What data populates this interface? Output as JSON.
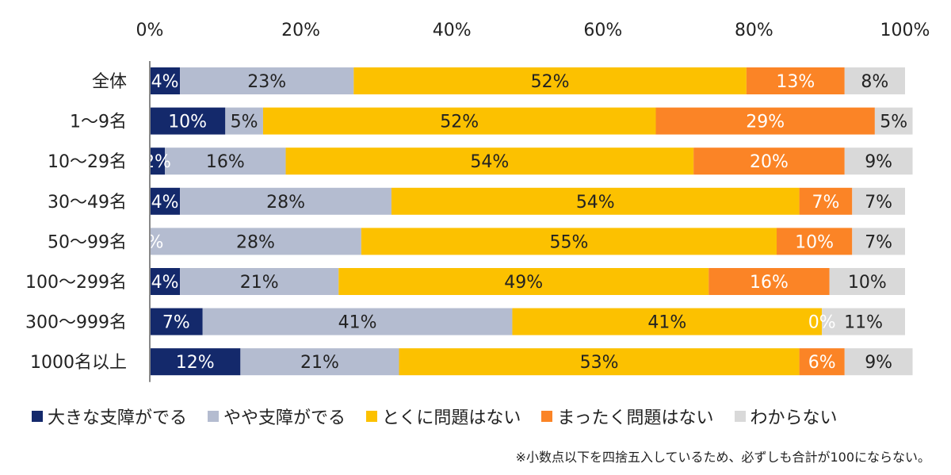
{
  "chart_data": {
    "type": "bar",
    "orientation": "horizontal",
    "stacked": true,
    "x_ticks": [
      "0%",
      "20%",
      "40%",
      "60%",
      "80%",
      "100%"
    ],
    "xlim": [
      0,
      100
    ],
    "categories": [
      "全体",
      "1～9名",
      "10～29名",
      "30～49名",
      "50～99名",
      "100～299名",
      "300～999名",
      "1000名以上"
    ],
    "series": [
      {
        "name": "大きな支障がでる",
        "color": "#14296b",
        "label_color": "#ffffff",
        "values": [
          4,
          10,
          2,
          4,
          0,
          4,
          7,
          12
        ],
        "labels": [
          "4%",
          "10%",
          "2%",
          "4%",
          "0%",
          "4%",
          "7%",
          "12%"
        ]
      },
      {
        "name": "やや支障がでる",
        "color": "#b4bcd0",
        "label_color": "#222222",
        "values": [
          23,
          5,
          16,
          28,
          28,
          21,
          41,
          21
        ],
        "labels": [
          "23%",
          "5%",
          "16%",
          "28%",
          "28%",
          "21%",
          "41%",
          "21%"
        ]
      },
      {
        "name": "とくに問題はない",
        "color": "#fcc100",
        "label_color": "#222222",
        "values": [
          52,
          52,
          54,
          54,
          55,
          49,
          41,
          53
        ],
        "labels": [
          "52%",
          "52%",
          "54%",
          "54%",
          "55%",
          "49%",
          "41%",
          "53%"
        ]
      },
      {
        "name": "まったく問題はない",
        "color": "#fb8426",
        "label_color": "#ffffff",
        "values": [
          13,
          29,
          20,
          7,
          10,
          16,
          0,
          6
        ],
        "labels": [
          "13%",
          "29%",
          "20%",
          "7%",
          "10%",
          "16%",
          "0%",
          "6%"
        ]
      },
      {
        "name": "わからない",
        "color": "#d9d9d9",
        "label_color": "#222222",
        "values": [
          8,
          5,
          9,
          7,
          7,
          10,
          11,
          9
        ],
        "labels": [
          "8%",
          "5%",
          "9%",
          "7%",
          "7%",
          "10%",
          "11%",
          "9%"
        ]
      }
    ],
    "legend_position": "bottom",
    "grid": false
  },
  "footnote": "※小数点以下を四捨五入しているため、必ずしも合計が100にならない。"
}
